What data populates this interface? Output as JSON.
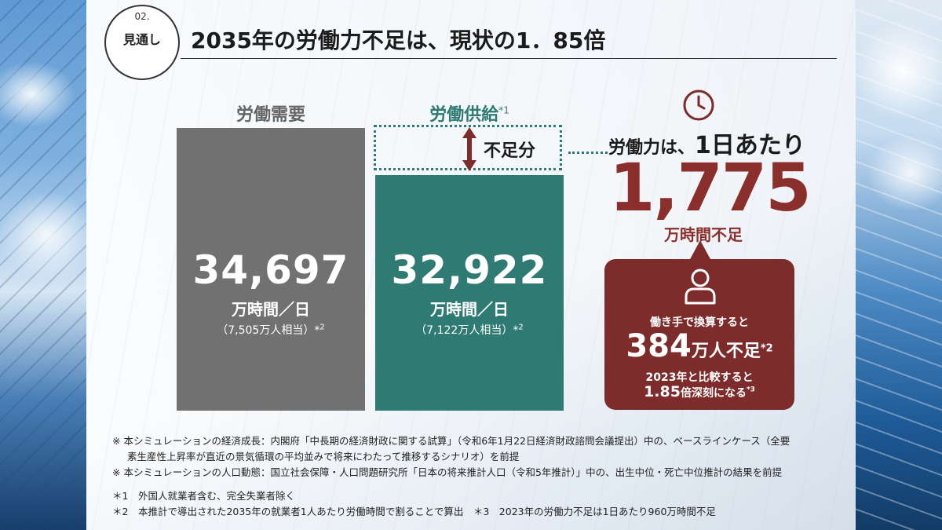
{
  "header": {
    "badge_number": "02.",
    "badge_label": "見通し",
    "title": "2035年の労働力不足は、現状の1．85倍"
  },
  "demand": {
    "heading": "労働需要",
    "value": "34,697",
    "unit": "万時間／日",
    "equivalent": "（7,505万人相当）*",
    "equivalent_note": "2"
  },
  "supply": {
    "heading": "労働供給",
    "heading_note": "*1",
    "value": "32,922",
    "unit": "万時間／日",
    "equivalent": "（7,122万人相当）*",
    "equivalent_note": "2",
    "shortage_label": "不足分"
  },
  "summary": {
    "prefix": "労働力は、",
    "per_day": "1日あたり",
    "shortage_value": "1,775",
    "shortage_unit": "万時間不足",
    "conversion_text": "働き手で換算すると",
    "workers_value": "384",
    "workers_unit": "万人不足",
    "workers_note": "*2",
    "compare_line1": "2023年と比較すると",
    "compare_multiplier": "1.85",
    "compare_rest": "倍深刻になる",
    "compare_note": "*3"
  },
  "notes": {
    "line1": "※ 本シミュレーションの経済成長：内閣府「中長期の経済財政に関する試算」（令和6年1月22日経済財政諮問会議提出）中の、ベースラインケース（全要",
    "line2": "素生産性上昇率が直近の景気循環の平均並みで将来にわたって推移するシナリオ）を前提",
    "line3": "※ 本シミュレーションの人口動態：国立社会保障・人口問題研究所「日本の将来推計人口（令和5年推計）」中の、出生中位・死亡中位推計の結果を前提",
    "line4": "＊1　外国人就業者含む、完全失業者除く",
    "line5": "＊2　本推計で導出された2035年の就業者1人あたり労働時間で割ることで算出　＊3　2023年の労働力不足は1日あたり960万時間不足"
  },
  "colors": {
    "demand": "#717171",
    "supply": "#2f7b73",
    "shortage": "#7d2c2b"
  },
  "icons": [
    "clock-icon",
    "person-icon",
    "double-arrow-icon"
  ]
}
